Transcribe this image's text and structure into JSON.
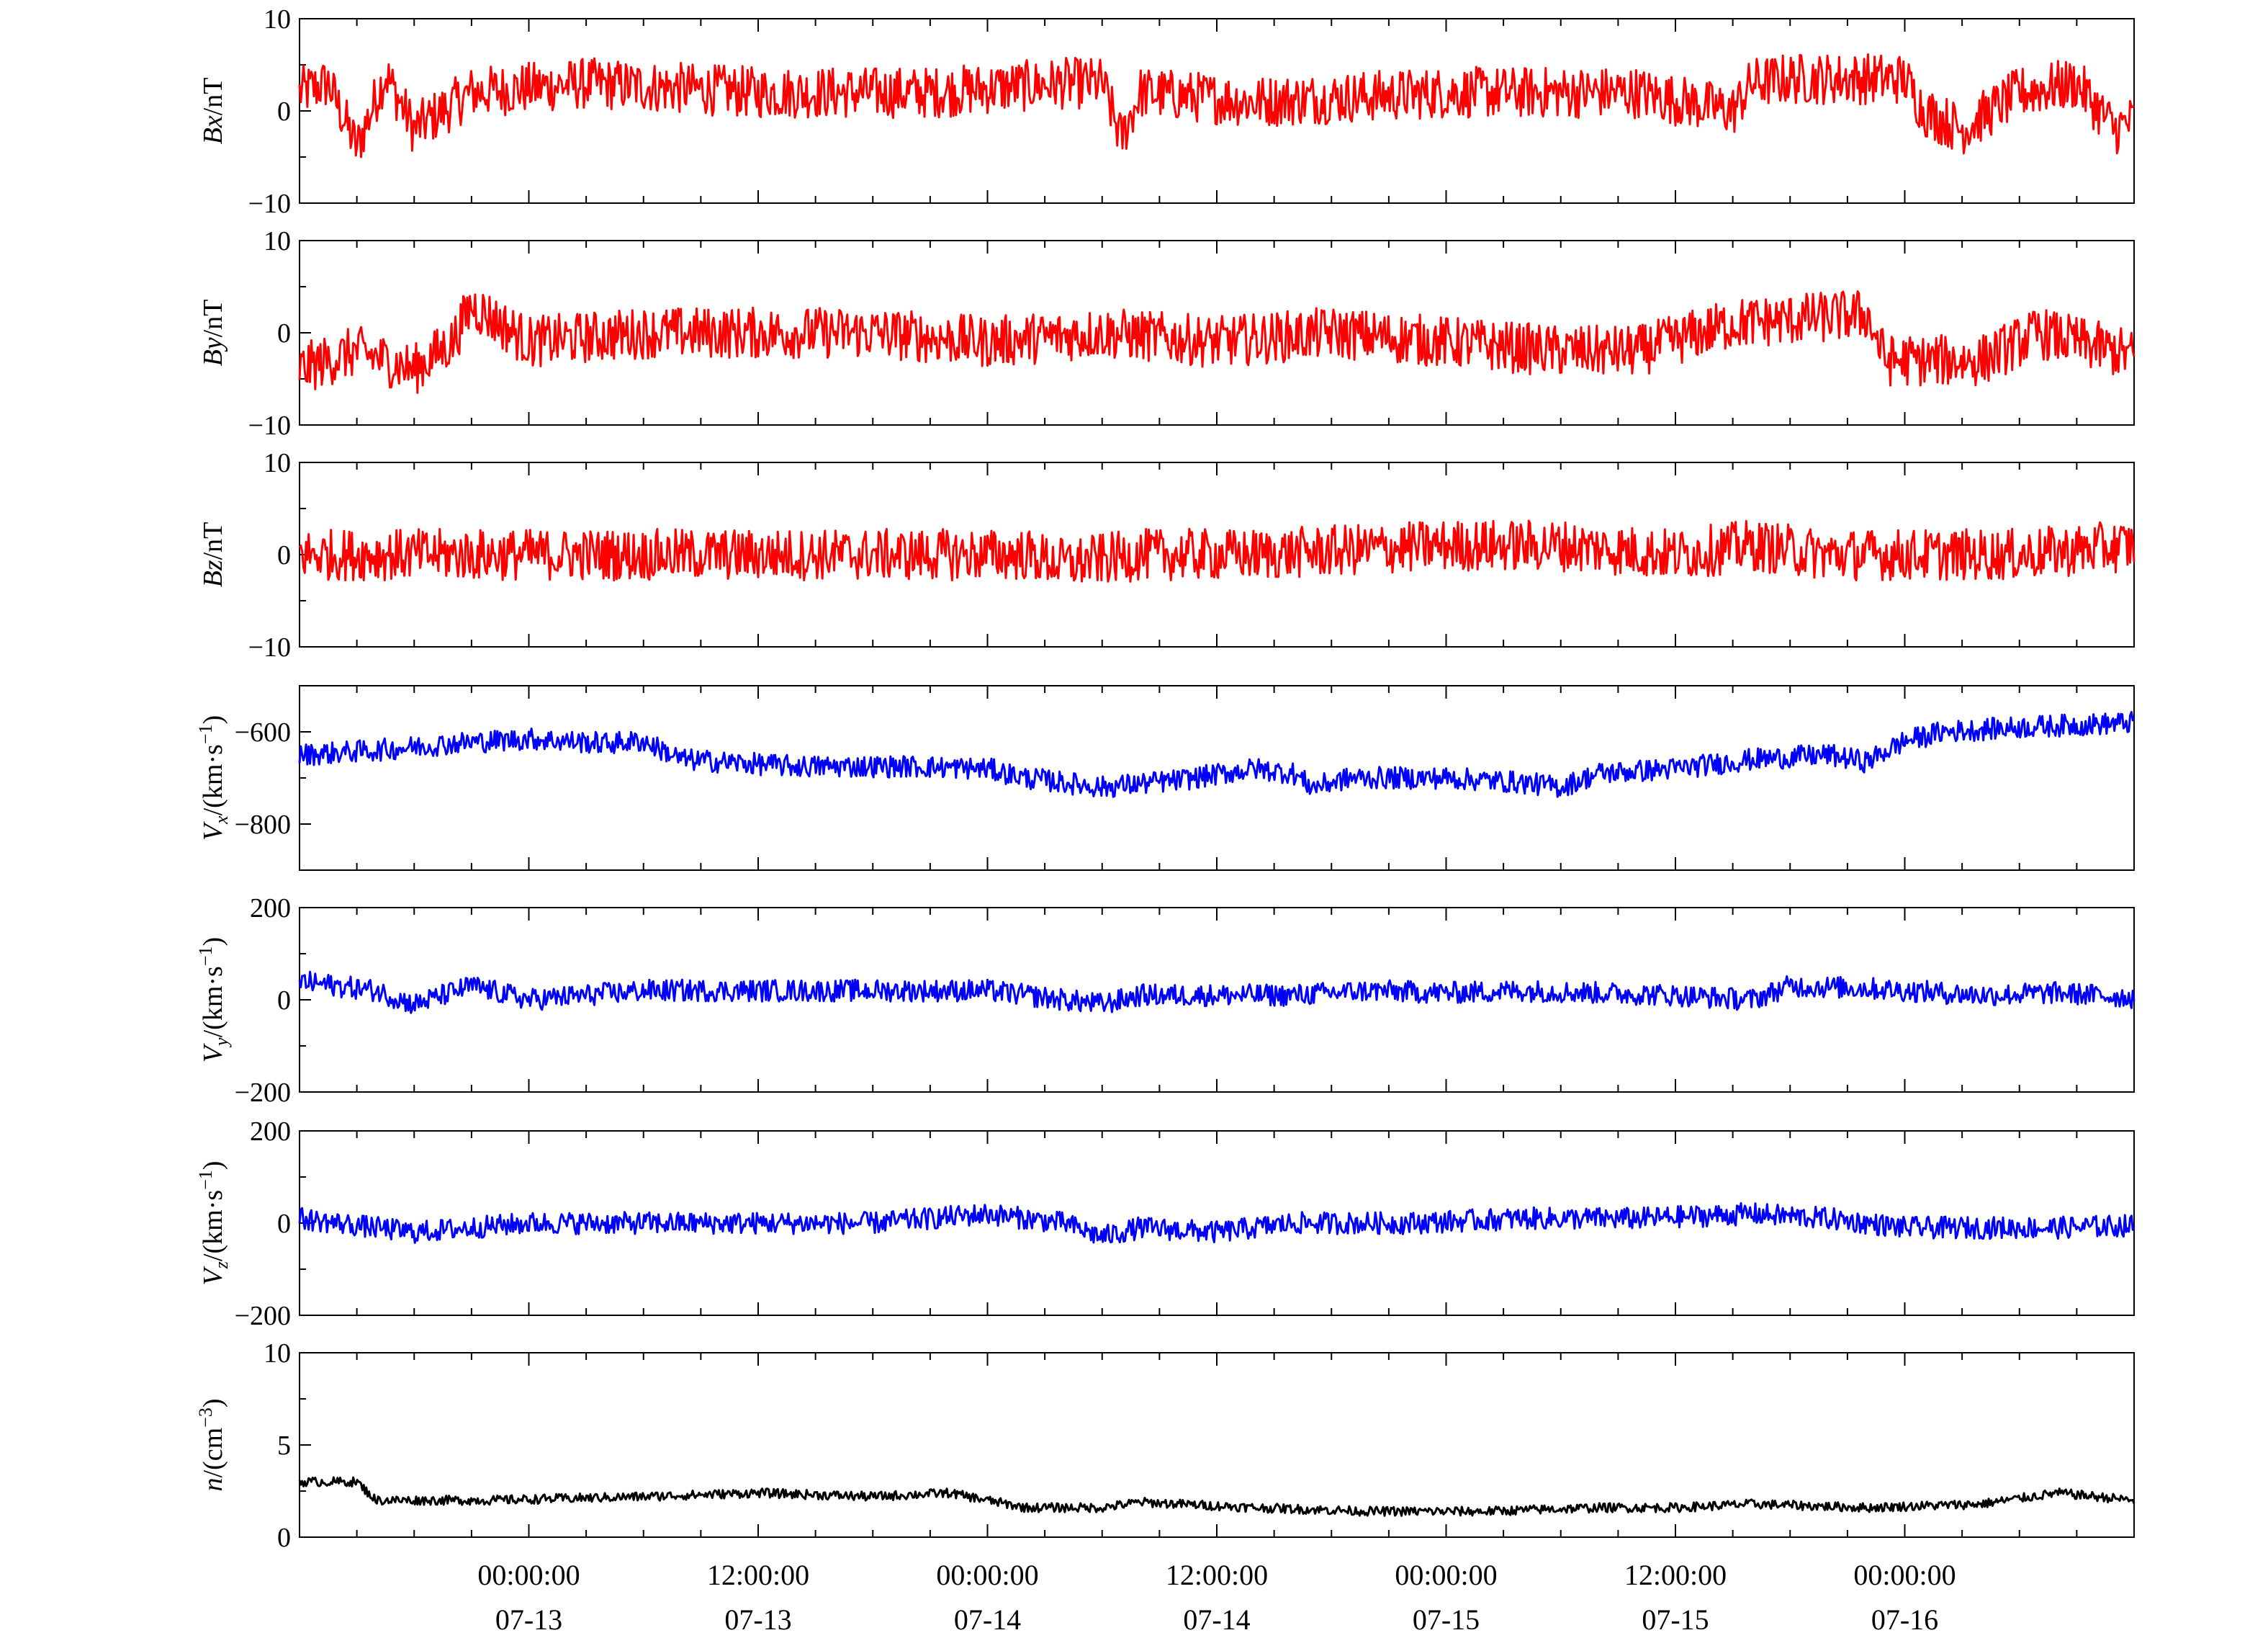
{
  "chart_data": {
    "type": "line",
    "colors": {
      "field": "#ff0000",
      "velocity": "#0000ff",
      "density": "#000000"
    },
    "x_ticks": [
      {
        "time": "00:00:00",
        "date": "07-13"
      },
      {
        "time": "12:00:00",
        "date": "07-13"
      },
      {
        "time": "00:00:00",
        "date": "07-14"
      },
      {
        "time": "12:00:00",
        "date": "07-14"
      },
      {
        "time": "00:00:00",
        "date": "07-15"
      },
      {
        "time": "12:00:00",
        "date": "07-15"
      },
      {
        "time": "00:00:00",
        "date": "07-16"
      }
    ],
    "xlim": [
      "07-12 12:00",
      "07-16 12:00"
    ],
    "panels": [
      {
        "id": "bx",
        "ylabel_main": "Bx",
        "ylabel_unit": "/nT",
        "ylim": [
          -10,
          10
        ],
        "yticks": [
          "10",
          "0",
          "−10"
        ],
        "ytick_values": [
          10,
          0,
          -10
        ],
        "color": "#ff0000",
        "series": [
          {
            "t": 0,
            "v": 2
          },
          {
            "t": 1.5,
            "v": 3
          },
          {
            "t": 3,
            "v": -4
          },
          {
            "t": 4.5,
            "v": 4
          },
          {
            "t": 6,
            "v": -2
          },
          {
            "t": 9,
            "v": 2
          },
          {
            "t": 15,
            "v": 3
          },
          {
            "t": 24,
            "v": 2
          },
          {
            "t": 33,
            "v": 2
          },
          {
            "t": 40,
            "v": 3
          },
          {
            "t": 42,
            "v": 3
          },
          {
            "t": 43,
            "v": -3
          },
          {
            "t": 44,
            "v": 2
          },
          {
            "t": 50,
            "v": 1
          },
          {
            "t": 60,
            "v": 2
          },
          {
            "t": 70,
            "v": 2
          },
          {
            "t": 75,
            "v": 0
          },
          {
            "t": 76,
            "v": 3
          },
          {
            "t": 78,
            "v": 3.5
          },
          {
            "t": 84,
            "v": 3.5
          },
          {
            "t": 85,
            "v": 0
          },
          {
            "t": 87,
            "v": -2
          },
          {
            "t": 90,
            "v": 2
          },
          {
            "t": 93,
            "v": 3
          },
          {
            "t": 95,
            "v": -2
          },
          {
            "t": 96,
            "v": -1
          }
        ]
      },
      {
        "id": "by",
        "ylabel_main": "By",
        "ylabel_unit": "/nT",
        "ylim": [
          -10,
          10
        ],
        "yticks": [
          "10",
          "0",
          "−10"
        ],
        "ytick_values": [
          10,
          0,
          -10
        ],
        "color": "#ff0000",
        "series": [
          {
            "t": 0,
            "v": -4
          },
          {
            "t": 3,
            "v": -2
          },
          {
            "t": 6,
            "v": -4
          },
          {
            "t": 8,
            "v": -1
          },
          {
            "t": 9,
            "v": 3
          },
          {
            "t": 12,
            "v": -1
          },
          {
            "t": 18,
            "v": 0
          },
          {
            "t": 24,
            "v": 0
          },
          {
            "t": 30,
            "v": 0
          },
          {
            "t": 36,
            "v": -1
          },
          {
            "t": 42,
            "v": 0
          },
          {
            "t": 48,
            "v": -1
          },
          {
            "t": 54,
            "v": 0
          },
          {
            "t": 60,
            "v": -1
          },
          {
            "t": 66,
            "v": -2
          },
          {
            "t": 70,
            "v": -2
          },
          {
            "t": 75,
            "v": 1
          },
          {
            "t": 82,
            "v": 2
          },
          {
            "t": 83,
            "v": -3
          },
          {
            "t": 88,
            "v": -3
          },
          {
            "t": 91,
            "v": 0
          },
          {
            "t": 96,
            "v": -2.5
          }
        ]
      },
      {
        "id": "bz",
        "ylabel_main": "Bz",
        "ylabel_unit": "/nT",
        "ylim": [
          -10,
          10
        ],
        "yticks": [
          "10",
          "0",
          "−10"
        ],
        "ytick_values": [
          10,
          0,
          -10
        ],
        "color": "#ff0000",
        "series": [
          {
            "t": 0,
            "v": 0
          },
          {
            "t": 6,
            "v": 0
          },
          {
            "t": 12,
            "v": 0
          },
          {
            "t": 18,
            "v": 0
          },
          {
            "t": 24,
            "v": 0
          },
          {
            "t": 30,
            "v": 0
          },
          {
            "t": 38,
            "v": 0
          },
          {
            "t": 40,
            "v": -1
          },
          {
            "t": 44,
            "v": 0
          },
          {
            "t": 50,
            "v": 0
          },
          {
            "t": 60,
            "v": 1
          },
          {
            "t": 66,
            "v": 1
          },
          {
            "t": 72,
            "v": 0
          },
          {
            "t": 76,
            "v": 1
          },
          {
            "t": 80,
            "v": 0
          },
          {
            "t": 86,
            "v": 0
          },
          {
            "t": 90,
            "v": 0
          },
          {
            "t": 96,
            "v": 1
          }
        ]
      },
      {
        "id": "vx",
        "ylabel_main": "V",
        "ylabel_sub": "x",
        "ylabel_unit": "/(km·s",
        "ylabel_sup": "−1",
        "ylabel_close": ")",
        "ylim": [
          -900,
          -500
        ],
        "yticks": [
          "−600",
          "−800"
        ],
        "ytick_values": [
          -600,
          -800
        ],
        "color": "#0000ff",
        "series": [
          {
            "t": 0,
            "v": -650
          },
          {
            "t": 4,
            "v": -640
          },
          {
            "t": 8,
            "v": -625
          },
          {
            "t": 12,
            "v": -615
          },
          {
            "t": 16,
            "v": -625
          },
          {
            "t": 18,
            "v": -620
          },
          {
            "t": 20,
            "v": -660
          },
          {
            "t": 26,
            "v": -675
          },
          {
            "t": 32,
            "v": -675
          },
          {
            "t": 36,
            "v": -680
          },
          {
            "t": 38,
            "v": -700
          },
          {
            "t": 42,
            "v": -720
          },
          {
            "t": 46,
            "v": -705
          },
          {
            "t": 50,
            "v": -680
          },
          {
            "t": 52,
            "v": -690
          },
          {
            "t": 53,
            "v": -720
          },
          {
            "t": 55,
            "v": -700
          },
          {
            "t": 60,
            "v": -700
          },
          {
            "t": 64,
            "v": -710
          },
          {
            "t": 66,
            "v": -720
          },
          {
            "t": 68,
            "v": -690
          },
          {
            "t": 72,
            "v": -680
          },
          {
            "t": 76,
            "v": -660
          },
          {
            "t": 80,
            "v": -650
          },
          {
            "t": 82,
            "v": -665
          },
          {
            "t": 84,
            "v": -620
          },
          {
            "t": 86,
            "v": -600
          },
          {
            "t": 90,
            "v": -590
          },
          {
            "t": 93,
            "v": -585
          },
          {
            "t": 96,
            "v": -580
          }
        ]
      },
      {
        "id": "vy",
        "ylabel_main": "V",
        "ylabel_sub": "y",
        "ylabel_unit": "/(km·s",
        "ylabel_sup": "−1",
        "ylabel_close": ")",
        "ylim": [
          -200,
          200
        ],
        "yticks": [
          "200",
          "0",
          "−200"
        ],
        "ytick_values": [
          200,
          0,
          -200
        ],
        "color": "#0000ff",
        "series": [
          {
            "t": 0,
            "v": 40
          },
          {
            "t": 4,
            "v": 20
          },
          {
            "t": 6,
            "v": -10
          },
          {
            "t": 9,
            "v": 30
          },
          {
            "t": 12,
            "v": 0
          },
          {
            "t": 18,
            "v": 20
          },
          {
            "t": 24,
            "v": 20
          },
          {
            "t": 30,
            "v": 20
          },
          {
            "t": 36,
            "v": 20
          },
          {
            "t": 40,
            "v": 0
          },
          {
            "t": 42,
            "v": -10
          },
          {
            "t": 44,
            "v": 10
          },
          {
            "t": 48,
            "v": 10
          },
          {
            "t": 52,
            "v": 10
          },
          {
            "t": 56,
            "v": 20
          },
          {
            "t": 60,
            "v": 15
          },
          {
            "t": 64,
            "v": 20
          },
          {
            "t": 68,
            "v": 15
          },
          {
            "t": 72,
            "v": 10
          },
          {
            "t": 76,
            "v": 0
          },
          {
            "t": 78,
            "v": 30
          },
          {
            "t": 82,
            "v": 25
          },
          {
            "t": 84,
            "v": 20
          },
          {
            "t": 88,
            "v": 10
          },
          {
            "t": 92,
            "v": 15
          },
          {
            "t": 96,
            "v": 5
          }
        ]
      },
      {
        "id": "vz",
        "ylabel_main": "V",
        "ylabel_sub": "z",
        "ylabel_unit": "/(km·s",
        "ylabel_sup": "−1",
        "ylabel_close": ")",
        "ylim": [
          -200,
          200
        ],
        "yticks": [
          "200",
          "0",
          "−200"
        ],
        "ytick_values": [
          200,
          0,
          -200
        ],
        "color": "#0000ff",
        "series": [
          {
            "t": 0,
            "v": 10
          },
          {
            "t": 6,
            "v": -20
          },
          {
            "t": 12,
            "v": 0
          },
          {
            "t": 18,
            "v": 0
          },
          {
            "t": 24,
            "v": 0
          },
          {
            "t": 30,
            "v": 0
          },
          {
            "t": 36,
            "v": 20
          },
          {
            "t": 40,
            "v": 0
          },
          {
            "t": 42,
            "v": -30
          },
          {
            "t": 44,
            "v": -10
          },
          {
            "t": 48,
            "v": -20
          },
          {
            "t": 52,
            "v": 0
          },
          {
            "t": 58,
            "v": 0
          },
          {
            "t": 64,
            "v": 10
          },
          {
            "t": 70,
            "v": 10
          },
          {
            "t": 76,
            "v": 20
          },
          {
            "t": 80,
            "v": 10
          },
          {
            "t": 84,
            "v": -10
          },
          {
            "t": 88,
            "v": -10
          },
          {
            "t": 92,
            "v": -10
          },
          {
            "t": 96,
            "v": -5
          }
        ]
      },
      {
        "id": "n",
        "ylabel_main": "n",
        "ylabel_unit": "/(cm",
        "ylabel_sup": "−3",
        "ylabel_close": ")",
        "ylim": [
          0,
          10
        ],
        "yticks": [
          "10",
          "5",
          "0"
        ],
        "ytick_values": [
          10,
          5,
          0
        ],
        "color": "#000000",
        "series": [
          {
            "t": 0,
            "v": 3
          },
          {
            "t": 3,
            "v": 3
          },
          {
            "t": 4,
            "v": 2
          },
          {
            "t": 10,
            "v": 2
          },
          {
            "t": 18,
            "v": 2.2
          },
          {
            "t": 24,
            "v": 2.4
          },
          {
            "t": 30,
            "v": 2.2
          },
          {
            "t": 34,
            "v": 2.4
          },
          {
            "t": 38,
            "v": 1.6
          },
          {
            "t": 42,
            "v": 1.6
          },
          {
            "t": 44,
            "v": 1.9
          },
          {
            "t": 50,
            "v": 1.6
          },
          {
            "t": 56,
            "v": 1.4
          },
          {
            "t": 62,
            "v": 1.4
          },
          {
            "t": 68,
            "v": 1.6
          },
          {
            "t": 72,
            "v": 1.6
          },
          {
            "t": 76,
            "v": 1.8
          },
          {
            "t": 82,
            "v": 1.6
          },
          {
            "t": 88,
            "v": 1.8
          },
          {
            "t": 92,
            "v": 2.4
          },
          {
            "t": 96,
            "v": 2
          }
        ]
      }
    ]
  }
}
